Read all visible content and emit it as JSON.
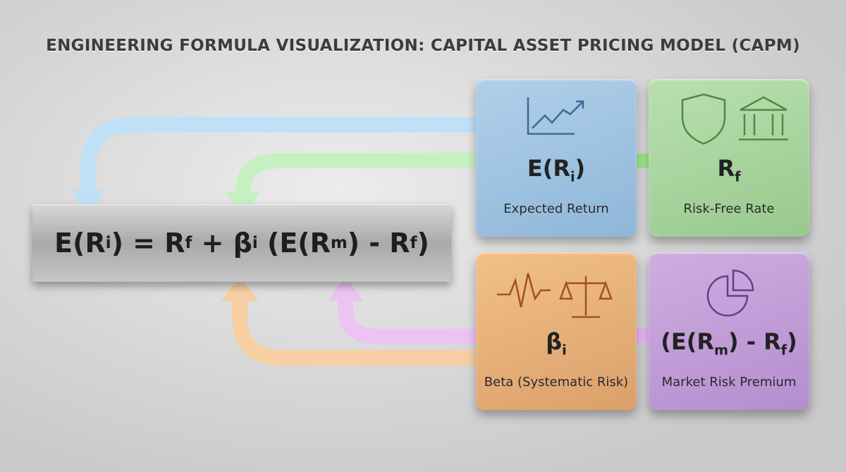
{
  "header": {
    "title": "ENGINEERING FORMULA VISUALIZATION: CAPITAL ASSET PRICING MODEL (CAPM)"
  },
  "formula": [
    {
      "text": "E(R"
    },
    {
      "text": "i",
      "sub": true
    },
    {
      "text": ") = R"
    },
    {
      "text": "f",
      "sub": true
    },
    {
      "text": " + β"
    },
    {
      "text": "i",
      "sub": true
    },
    {
      "text": " (E(R"
    },
    {
      "text": "m",
      "sub": true
    },
    {
      "text": ") - R"
    },
    {
      "text": "f",
      "sub": true
    },
    {
      "text": ")"
    }
  ],
  "tiles": [
    {
      "symbol": [
        {
          "text": "E(R"
        },
        {
          "text": "i",
          "sub": true
        },
        {
          "text": ")"
        }
      ],
      "label": "Expected Return"
    },
    {
      "symbol": [
        {
          "text": "R"
        },
        {
          "text": "f",
          "sub": true
        }
      ],
      "label": "Risk-Free Rate"
    },
    {
      "symbol": [
        {
          "text": "β"
        },
        {
          "text": "i",
          "sub": true
        }
      ],
      "label": "Beta (Systematic Risk)"
    },
    {
      "symbol": [
        {
          "text": "(E(R"
        },
        {
          "text": "m",
          "sub": true
        },
        {
          "text": ") - R"
        },
        {
          "text": "f",
          "sub": true
        },
        {
          "text": ")"
        }
      ],
      "label": "Market Risk Premium"
    }
  ]
}
